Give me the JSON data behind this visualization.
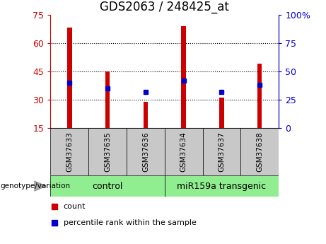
{
  "title": "GDS2063 / 248425_at",
  "categories": [
    "GSM37633",
    "GSM37635",
    "GSM37636",
    "GSM37634",
    "GSM37637",
    "GSM37638"
  ],
  "bar_values": [
    68,
    45,
    29,
    69,
    31,
    49
  ],
  "bar_bottom": 15,
  "dot_values_left": [
    39,
    36,
    34,
    40,
    34,
    38
  ],
  "ylim_left": [
    15,
    75
  ],
  "ylim_right": [
    0,
    100
  ],
  "yticks_left": [
    15,
    30,
    45,
    60,
    75
  ],
  "yticks_right": [
    0,
    25,
    50,
    75,
    100
  ],
  "ytick_labels_right": [
    "0",
    "25",
    "50",
    "75",
    "100%"
  ],
  "bar_color": "#cc0000",
  "dot_color": "#0000cc",
  "control_label": "control",
  "transgenic_label": "miR159a transgenic",
  "control_bg": "#90ee90",
  "transgenic_bg": "#90ee90",
  "xlabel_area_bg": "#c8c8c8",
  "genotype_label": "genotype/variation",
  "legend_count": "count",
  "legend_percentile": "percentile rank within the sample",
  "bar_width": 0.12,
  "title_fontsize": 12,
  "tick_fontsize": 9,
  "label_fontsize": 8,
  "group_label_fontsize": 9
}
